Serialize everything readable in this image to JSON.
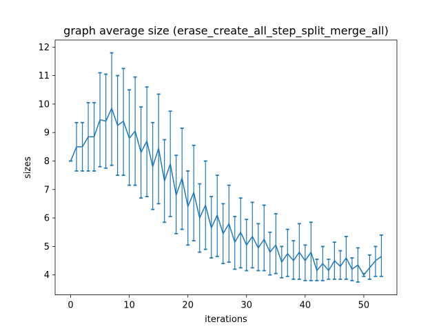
{
  "chart_data": {
    "type": "line",
    "title": "graph average size (erase_create_all_step_split_merge_all)",
    "xlabel": "iterations",
    "ylabel": "sizes",
    "xlim": [
      -2.65,
      55.65
    ],
    "ylim": [
      3.3,
      12.25
    ],
    "xticks": [
      0,
      10,
      20,
      30,
      40,
      50
    ],
    "yticks": [
      4,
      5,
      6,
      7,
      8,
      9,
      10,
      11,
      12
    ],
    "grid": false,
    "color": "#1f77b4",
    "series": [
      {
        "x": [
          0,
          1,
          2,
          3,
          4,
          5,
          6,
          7,
          8,
          9,
          10,
          11,
          12,
          13,
          14,
          15,
          16,
          17,
          18,
          19,
          20,
          21,
          22,
          23,
          24,
          25,
          26,
          27,
          28,
          29,
          30,
          31,
          32,
          33,
          34,
          35,
          36,
          37,
          38,
          39,
          40,
          41,
          42,
          43,
          44,
          45,
          46,
          47,
          48,
          49,
          50,
          51,
          52,
          53
        ],
        "y": [
          8.0,
          8.5,
          8.5,
          8.85,
          8.85,
          9.45,
          9.4,
          9.85,
          9.25,
          9.4,
          8.8,
          9.05,
          8.3,
          8.7,
          7.8,
          8.45,
          7.3,
          7.9,
          6.8,
          7.4,
          6.4,
          6.9,
          6.0,
          6.45,
          5.65,
          6.1,
          5.45,
          5.8,
          5.15,
          5.5,
          5.05,
          5.35,
          4.95,
          5.25,
          4.8,
          5.05,
          4.45,
          4.75,
          4.5,
          4.8,
          4.5,
          4.8,
          4.15,
          4.4,
          4.15,
          4.5,
          4.3,
          4.6,
          4.2,
          4.35,
          4.0,
          4.25,
          4.5,
          4.65
        ],
        "err_low": [
          8.0,
          7.65,
          7.65,
          7.65,
          7.65,
          7.8,
          7.75,
          7.85,
          7.5,
          7.5,
          7.15,
          7.15,
          6.7,
          6.75,
          6.3,
          6.5,
          5.85,
          6.05,
          5.45,
          5.6,
          5.05,
          5.2,
          4.8,
          4.9,
          4.6,
          4.65,
          4.4,
          4.45,
          4.2,
          4.25,
          4.15,
          4.25,
          4.15,
          4.15,
          4.0,
          4.05,
          3.9,
          3.95,
          3.85,
          3.85,
          3.8,
          3.8,
          3.8,
          3.8,
          3.85,
          3.85,
          3.85,
          3.85,
          3.8,
          3.75,
          3.95,
          3.85,
          3.95,
          3.95
        ],
        "err_high": [
          8.0,
          9.35,
          9.35,
          10.05,
          10.05,
          11.1,
          11.05,
          11.8,
          11.0,
          11.25,
          10.5,
          10.95,
          9.9,
          10.6,
          9.35,
          10.35,
          8.75,
          9.75,
          8.2,
          9.15,
          7.65,
          8.55,
          7.2,
          8.0,
          6.75,
          7.5,
          6.5,
          7.15,
          6.05,
          6.7,
          5.95,
          6.55,
          5.8,
          6.45,
          5.5,
          6.15,
          5.0,
          5.6,
          5.2,
          5.8,
          5.05,
          5.85,
          4.55,
          5.0,
          4.55,
          5.15,
          4.85,
          5.35,
          4.6,
          4.95,
          4.05,
          4.7,
          5.0,
          5.4
        ]
      }
    ]
  }
}
